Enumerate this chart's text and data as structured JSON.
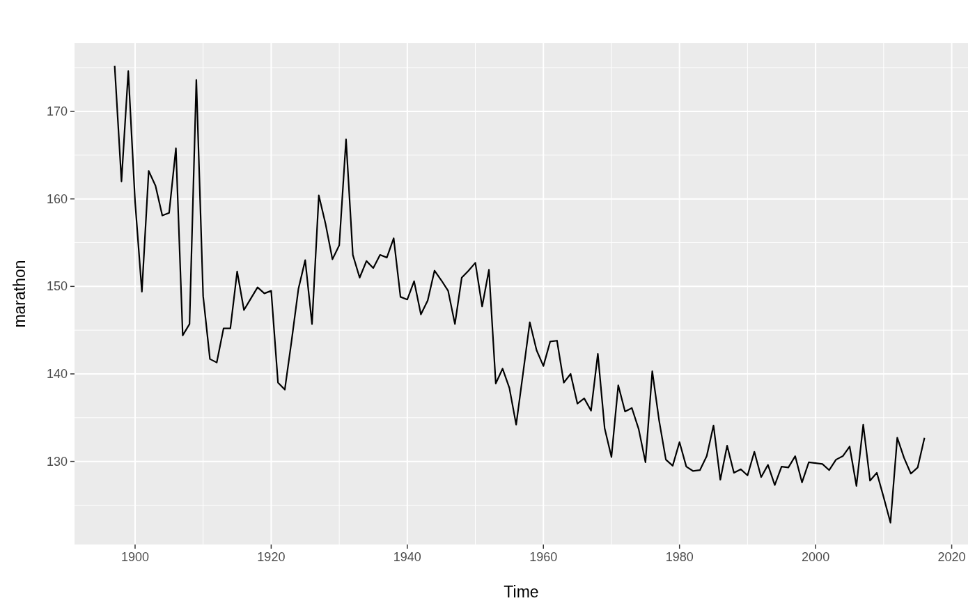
{
  "chart_data": {
    "type": "line",
    "xlabel": "Time",
    "ylabel": "marathon",
    "xlim": [
      1891.1,
      2022.4
    ],
    "ylim": [
      120.5,
      177.8
    ],
    "xticks": [
      1900,
      1920,
      1940,
      1960,
      1980,
      2000,
      2020
    ],
    "yticks": [
      130,
      140,
      150,
      160,
      170
    ],
    "grid": true,
    "series": [
      {
        "color": "#000000",
        "x": [
          1897,
          1898,
          1899,
          1900,
          1901,
          1902,
          1903,
          1904,
          1905,
          1906,
          1907,
          1908,
          1909,
          1910,
          1911,
          1912,
          1913,
          1914,
          1915,
          1916,
          1917,
          1918,
          1919,
          1920,
          1921,
          1922,
          1923,
          1924,
          1925,
          1926,
          1927,
          1928,
          1929,
          1930,
          1931,
          1932,
          1933,
          1934,
          1935,
          1936,
          1937,
          1938,
          1939,
          1940,
          1941,
          1942,
          1943,
          1944,
          1945,
          1946,
          1947,
          1948,
          1949,
          1950,
          1951,
          1952,
          1953,
          1954,
          1955,
          1956,
          1957,
          1958,
          1959,
          1960,
          1961,
          1962,
          1963,
          1964,
          1965,
          1966,
          1967,
          1968,
          1969,
          1970,
          1971,
          1972,
          1973,
          1974,
          1975,
          1976,
          1977,
          1978,
          1979,
          1980,
          1981,
          1982,
          1983,
          1984,
          1985,
          1986,
          1987,
          1988,
          1989,
          1990,
          1991,
          1992,
          1993,
          1994,
          1995,
          1996,
          1997,
          1998,
          1999,
          2000,
          2001,
          2002,
          2003,
          2004,
          2005,
          2006,
          2007,
          2008,
          2009,
          2010,
          2011,
          2012,
          2013,
          2014,
          2015,
          2016
        ],
        "values": [
          175.2,
          162.0,
          174.6,
          159.7,
          149.4,
          163.2,
          161.5,
          158.1,
          158.4,
          165.8,
          144.4,
          145.7,
          173.6,
          148.9,
          141.7,
          141.3,
          145.2,
          145.2,
          151.7,
          147.3,
          148.6,
          149.9,
          149.2,
          149.5,
          139.0,
          138.2,
          143.8,
          149.7,
          153.0,
          145.7,
          160.4,
          157.1,
          153.1,
          154.7,
          166.8,
          153.6,
          151.0,
          152.9,
          152.1,
          153.6,
          153.3,
          155.5,
          148.8,
          148.5,
          150.6,
          146.8,
          148.4,
          151.8,
          150.7,
          149.5,
          145.7,
          151.0,
          151.8,
          152.7,
          147.7,
          151.9,
          138.9,
          140.6,
          138.4,
          134.2,
          140.0,
          145.9,
          142.7,
          140.9,
          143.7,
          143.8,
          139.0,
          140.0,
          136.6,
          137.2,
          135.8,
          142.3,
          133.8,
          130.5,
          138.7,
          135.7,
          136.1,
          133.7,
          129.9,
          140.3,
          134.7,
          130.2,
          129.5,
          132.2,
          129.4,
          128.9,
          129.0,
          130.6,
          134.1,
          127.9,
          131.8,
          128.7,
          129.1,
          128.4,
          131.1,
          128.2,
          129.6,
          127.3,
          129.4,
          129.3,
          130.6,
          127.6,
          129.9,
          129.8,
          129.7,
          129.0,
          130.2,
          130.6,
          131.7,
          127.2,
          134.2,
          127.8,
          128.7,
          125.9,
          123.0,
          132.7,
          130.4,
          128.6,
          129.3,
          132.7
        ]
      }
    ]
  }
}
